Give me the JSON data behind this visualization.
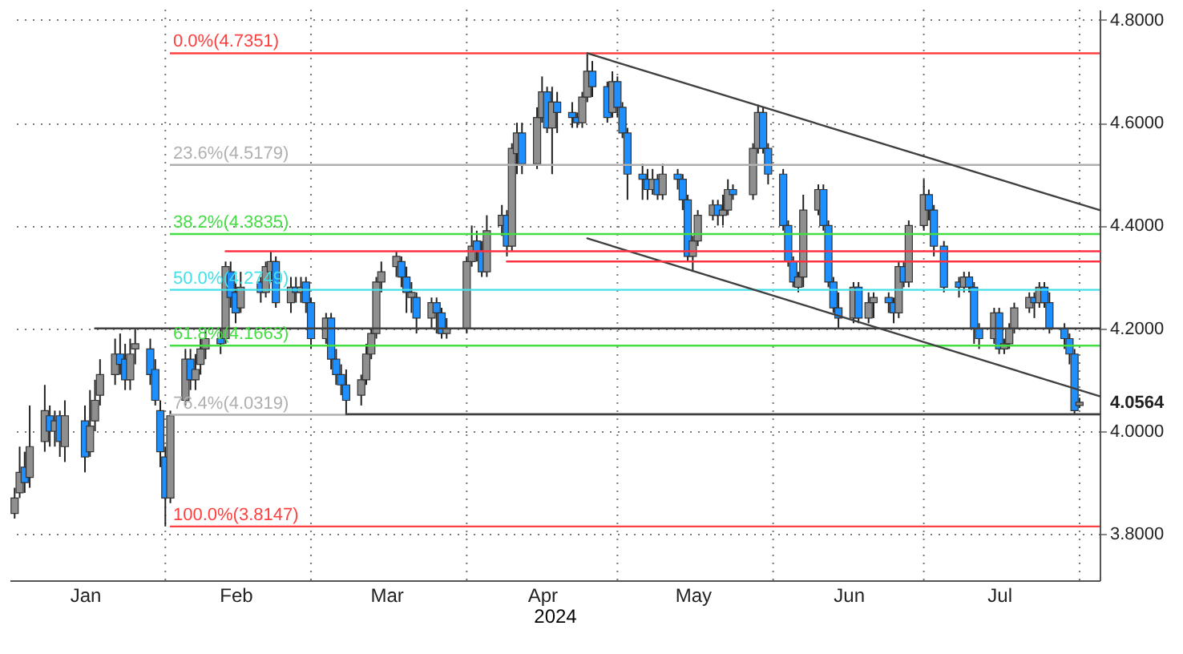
{
  "chart_data": {
    "type": "candlestick",
    "xlabel": "2024",
    "x": [
      "2024-01-02",
      "2024-01-03",
      "2024-01-04",
      "2024-01-05",
      "2024-01-08",
      "2024-01-09",
      "2024-01-10",
      "2024-01-11",
      "2024-01-12",
      "2024-01-16",
      "2024-01-17",
      "2024-01-18",
      "2024-01-19",
      "2024-01-22",
      "2024-01-23",
      "2024-01-24",
      "2024-01-25",
      "2024-01-26",
      "2024-01-29",
      "2024-01-30",
      "2024-01-31",
      "2024-02-01",
      "2024-02-02",
      "2024-02-05",
      "2024-02-06",
      "2024-02-07",
      "2024-02-08",
      "2024-02-09",
      "2024-02-12",
      "2024-02-13",
      "2024-02-14",
      "2024-02-15",
      "2024-02-16",
      "2024-02-20",
      "2024-02-21",
      "2024-02-22",
      "2024-02-23",
      "2024-02-26",
      "2024-02-27",
      "2024-02-28",
      "2024-02-29",
      "2024-03-01",
      "2024-03-04",
      "2024-03-05",
      "2024-03-06",
      "2024-03-07",
      "2024-03-08",
      "2024-03-11",
      "2024-03-12",
      "2024-03-13",
      "2024-03-14",
      "2024-03-15",
      "2024-03-18",
      "2024-03-19",
      "2024-03-20",
      "2024-03-21",
      "2024-03-22",
      "2024-03-25",
      "2024-03-26",
      "2024-03-27",
      "2024-03-28",
      "2024-04-01",
      "2024-04-02",
      "2024-04-03",
      "2024-04-04",
      "2024-04-05",
      "2024-04-08",
      "2024-04-09",
      "2024-04-10",
      "2024-04-11",
      "2024-04-12",
      "2024-04-15",
      "2024-04-16",
      "2024-04-17",
      "2024-04-18",
      "2024-04-19",
      "2024-04-22",
      "2024-04-23",
      "2024-04-24",
      "2024-04-25",
      "2024-04-26",
      "2024-04-29",
      "2024-04-30",
      "2024-05-01",
      "2024-05-02",
      "2024-05-03",
      "2024-05-06",
      "2024-05-07",
      "2024-05-08",
      "2024-05-09",
      "2024-05-10",
      "2024-05-13",
      "2024-05-14",
      "2024-05-15",
      "2024-05-16",
      "2024-05-17",
      "2024-05-20",
      "2024-05-21",
      "2024-05-22",
      "2024-05-23",
      "2024-05-24",
      "2024-05-28",
      "2024-05-29",
      "2024-05-30",
      "2024-05-31",
      "2024-06-03",
      "2024-06-04",
      "2024-06-05",
      "2024-06-06",
      "2024-06-07",
      "2024-06-10",
      "2024-06-11",
      "2024-06-12",
      "2024-06-13",
      "2024-06-14",
      "2024-06-17",
      "2024-06-18",
      "2024-06-20",
      "2024-06-21",
      "2024-06-24",
      "2024-06-25",
      "2024-06-26",
      "2024-06-27",
      "2024-06-28",
      "2024-07-01",
      "2024-07-02",
      "2024-07-03",
      "2024-07-05",
      "2024-07-08",
      "2024-07-09",
      "2024-07-10",
      "2024-07-11",
      "2024-07-12",
      "2024-07-15",
      "2024-07-16",
      "2024-07-17",
      "2024-07-18",
      "2024-07-19",
      "2024-07-22",
      "2024-07-23",
      "2024-07-24",
      "2024-07-25",
      "2024-07-26",
      "2024-07-29",
      "2024-07-30",
      "2024-07-31",
      "2024-08-01"
    ],
    "ohlc": [
      [
        3.84,
        3.89,
        3.83,
        3.87
      ],
      [
        3.88,
        3.97,
        3.87,
        3.92
      ],
      [
        3.93,
        3.96,
        3.88,
        3.9
      ],
      [
        3.91,
        4.05,
        3.89,
        3.97
      ],
      [
        3.98,
        4.09,
        3.96,
        4.04
      ],
      [
        4.03,
        4.05,
        3.97,
        4.0
      ],
      [
        4.0,
        4.04,
        3.97,
        4.02
      ],
      [
        4.03,
        4.04,
        3.95,
        3.98
      ],
      [
        3.97,
        4.06,
        3.94,
        4.03
      ],
      [
        4.02,
        4.05,
        3.92,
        3.95
      ],
      [
        3.96,
        4.08,
        3.95,
        4.01
      ],
      [
        4.02,
        4.1,
        4.0,
        4.06
      ],
      [
        4.07,
        4.14,
        4.05,
        4.11
      ],
      [
        4.11,
        4.18,
        4.09,
        4.15
      ],
      [
        4.15,
        4.19,
        4.11,
        4.13
      ],
      [
        4.14,
        4.17,
        4.08,
        4.1
      ],
      [
        4.1,
        4.18,
        4.08,
        4.15
      ],
      [
        4.16,
        4.2,
        4.13,
        4.17
      ],
      [
        4.16,
        4.18,
        4.09,
        4.11
      ],
      [
        4.12,
        4.14,
        4.05,
        4.06
      ],
      [
        4.04,
        4.06,
        3.93,
        3.96
      ],
      [
        3.95,
        3.97,
        3.8147,
        3.87
      ],
      [
        3.87,
        4.04,
        3.86,
        4.03
      ],
      [
        4.06,
        4.16,
        4.05,
        4.14
      ],
      [
        4.14,
        4.16,
        4.08,
        4.1
      ],
      [
        4.1,
        4.15,
        4.08,
        4.12
      ],
      [
        4.13,
        4.18,
        4.11,
        4.16
      ],
      [
        4.16,
        4.2,
        4.14,
        4.18
      ],
      [
        4.18,
        4.2,
        4.15,
        4.17
      ],
      [
        4.18,
        4.33,
        4.17,
        4.32
      ],
      [
        4.31,
        4.33,
        4.24,
        4.26
      ],
      [
        4.27,
        4.29,
        4.21,
        4.23
      ],
      [
        4.24,
        4.31,
        4.23,
        4.28
      ],
      [
        4.29,
        4.3,
        4.25,
        4.27
      ],
      [
        4.27,
        4.33,
        4.26,
        4.32
      ],
      [
        4.31,
        4.35,
        4.29,
        4.33
      ],
      [
        4.33,
        4.34,
        4.24,
        4.25
      ],
      [
        4.25,
        4.3,
        4.23,
        4.28
      ],
      [
        4.28,
        4.3,
        4.25,
        4.27
      ],
      [
        4.27,
        4.3,
        4.25,
        4.28
      ],
      [
        4.29,
        4.3,
        4.23,
        4.25
      ],
      [
        4.25,
        4.26,
        4.16,
        4.18
      ],
      [
        4.18,
        4.23,
        4.17,
        4.22
      ],
      [
        4.22,
        4.23,
        4.12,
        4.14
      ],
      [
        4.14,
        4.16,
        4.09,
        4.11
      ],
      [
        4.11,
        4.13,
        4.07,
        4.09
      ],
      [
        4.09,
        4.12,
        4.033,
        4.06
      ],
      [
        4.07,
        4.11,
        4.05,
        4.1
      ],
      [
        4.1,
        4.17,
        4.09,
        4.15
      ],
      [
        4.15,
        4.2,
        4.14,
        4.19
      ],
      [
        4.19,
        4.3,
        4.18,
        4.29
      ],
      [
        4.29,
        4.33,
        4.27,
        4.31
      ],
      [
        4.32,
        4.35,
        4.3,
        4.34
      ],
      [
        4.33,
        4.34,
        4.28,
        4.3
      ],
      [
        4.3,
        4.32,
        4.23,
        4.27
      ],
      [
        4.26,
        4.29,
        4.23,
        4.27
      ],
      [
        4.26,
        4.27,
        4.19,
        4.22
      ],
      [
        4.22,
        4.26,
        4.2,
        4.25
      ],
      [
        4.25,
        4.26,
        4.19,
        4.23
      ],
      [
        4.23,
        4.24,
        4.18,
        4.19
      ],
      [
        4.19,
        4.22,
        4.18,
        4.2
      ],
      [
        4.2,
        4.34,
        4.19,
        4.33
      ],
      [
        4.33,
        4.4,
        4.32,
        4.36
      ],
      [
        4.37,
        4.39,
        4.33,
        4.35
      ],
      [
        4.35,
        4.37,
        4.3,
        4.31
      ],
      [
        4.31,
        4.42,
        4.3,
        4.39
      ],
      [
        4.4,
        4.44,
        4.38,
        4.42
      ],
      [
        4.42,
        4.43,
        4.34,
        4.36
      ],
      [
        4.36,
        4.56,
        4.35,
        4.55
      ],
      [
        4.54,
        4.6,
        4.5,
        4.58
      ],
      [
        4.58,
        4.6,
        4.5,
        4.52
      ],
      [
        4.52,
        4.63,
        4.51,
        4.61
      ],
      [
        4.61,
        4.69,
        4.6,
        4.66
      ],
      [
        4.66,
        4.67,
        4.58,
        4.59
      ],
      [
        4.59,
        4.67,
        4.5,
        4.64
      ],
      [
        4.64,
        4.66,
        4.58,
        4.62
      ],
      [
        4.62,
        4.64,
        4.59,
        4.61
      ],
      [
        4.61,
        4.62,
        4.59,
        4.6
      ],
      [
        4.6,
        4.66,
        4.59,
        4.65
      ],
      [
        4.65,
        4.7351,
        4.64,
        4.7
      ],
      [
        4.7,
        4.72,
        4.65,
        4.67
      ],
      [
        4.67,
        4.68,
        4.6,
        4.61
      ],
      [
        4.62,
        4.7,
        4.61,
        4.68
      ],
      [
        4.68,
        4.69,
        4.61,
        4.63
      ],
      [
        4.63,
        4.64,
        4.57,
        4.58
      ],
      [
        4.58,
        4.59,
        4.45,
        4.5
      ],
      [
        4.5,
        4.52,
        4.45,
        4.49
      ],
      [
        4.49,
        4.51,
        4.45,
        4.47
      ],
      [
        4.47,
        4.51,
        4.46,
        4.49
      ],
      [
        4.49,
        4.5,
        4.45,
        4.46
      ],
      [
        4.46,
        4.52,
        4.45,
        4.5
      ],
      [
        4.5,
        4.51,
        4.47,
        4.49
      ],
      [
        4.49,
        4.5,
        4.43,
        4.45
      ],
      [
        4.45,
        4.46,
        4.33,
        4.34
      ],
      [
        4.34,
        4.38,
        4.31,
        4.37
      ],
      [
        4.37,
        4.43,
        4.36,
        4.42
      ],
      [
        4.42,
        4.45,
        4.41,
        4.44
      ],
      [
        4.44,
        4.45,
        4.4,
        4.42
      ],
      [
        4.42,
        4.46,
        4.4,
        4.43
      ],
      [
        4.43,
        4.49,
        4.42,
        4.47
      ],
      [
        4.47,
        4.48,
        4.45,
        4.46
      ],
      [
        4.46,
        4.56,
        4.45,
        4.55
      ],
      [
        4.55,
        4.635,
        4.54,
        4.62
      ],
      [
        4.62,
        4.63,
        4.54,
        4.55
      ],
      [
        4.55,
        4.56,
        4.48,
        4.5
      ],
      [
        4.5,
        4.51,
        4.39,
        4.4
      ],
      [
        4.4,
        4.41,
        4.32,
        4.33
      ],
      [
        4.33,
        4.34,
        4.28,
        4.29
      ],
      [
        4.28,
        4.31,
        4.27,
        4.3
      ],
      [
        4.3,
        4.46,
        4.28,
        4.43
      ],
      [
        4.43,
        4.48,
        4.42,
        4.47
      ],
      [
        4.47,
        4.48,
        4.39,
        4.4
      ],
      [
        4.4,
        4.41,
        4.28,
        4.29
      ],
      [
        4.29,
        4.3,
        4.23,
        4.24
      ],
      [
        4.24,
        4.27,
        4.2,
        4.22
      ],
      [
        4.22,
        4.29,
        4.21,
        4.28
      ],
      [
        4.28,
        4.29,
        4.21,
        4.22
      ],
      [
        4.22,
        4.27,
        4.21,
        4.25
      ],
      [
        4.25,
        4.27,
        4.22,
        4.26
      ],
      [
        4.26,
        4.27,
        4.23,
        4.25
      ],
      [
        4.25,
        4.26,
        4.21,
        4.23
      ],
      [
        4.23,
        4.33,
        4.22,
        4.32
      ],
      [
        4.32,
        4.33,
        4.28,
        4.29
      ],
      [
        4.29,
        4.41,
        4.28,
        4.4
      ],
      [
        4.4,
        4.49,
        4.39,
        4.46
      ],
      [
        4.46,
        4.47,
        4.41,
        4.43
      ],
      [
        4.43,
        4.44,
        4.34,
        4.36
      ],
      [
        4.36,
        4.37,
        4.27,
        4.28
      ],
      [
        4.29,
        4.3,
        4.26,
        4.28
      ],
      [
        4.28,
        4.31,
        4.27,
        4.3
      ],
      [
        4.3,
        4.31,
        4.27,
        4.28
      ],
      [
        4.28,
        4.29,
        4.17,
        4.2
      ],
      [
        4.2,
        4.21,
        4.16,
        4.18
      ],
      [
        4.18,
        4.24,
        4.17,
        4.23
      ],
      [
        4.23,
        4.24,
        4.15,
        4.16
      ],
      [
        4.16,
        4.18,
        4.15,
        4.17
      ],
      [
        4.17,
        4.21,
        4.16,
        4.2
      ],
      [
        4.2,
        4.25,
        4.19,
        4.24
      ],
      [
        4.24,
        4.27,
        4.23,
        4.26
      ],
      [
        4.26,
        4.27,
        4.22,
        4.25
      ],
      [
        4.25,
        4.29,
        4.24,
        4.28
      ],
      [
        4.28,
        4.29,
        4.24,
        4.25
      ],
      [
        4.25,
        4.27,
        4.19,
        4.2
      ],
      [
        4.2,
        4.21,
        4.16,
        4.18
      ],
      [
        4.18,
        4.19,
        4.13,
        4.15
      ],
      [
        4.15,
        4.16,
        4.033,
        4.04
      ],
      [
        4.05,
        4.065,
        4.045,
        4.0564
      ]
    ],
    "series": [
      {
        "type": "line",
        "color": "#404040",
        "x": [
          "2024-04-25",
          "2024-08-05"
        ],
        "values": [
          4.7351,
          4.43
        ]
      },
      {
        "type": "line",
        "color": "#404040",
        "x": [
          "2024-04-25",
          "2024-08-05"
        ],
        "values": [
          4.375,
          4.068
        ]
      },
      {
        "type": "line",
        "color": "#404040",
        "x": [
          "2024-01-18",
          "2024-08-05"
        ],
        "values": [
          4.2,
          4.2
        ]
      },
      {
        "type": "line",
        "color": "#404040",
        "x": [
          "2024-03-08",
          "2024-08-05"
        ],
        "values": [
          4.033,
          4.033
        ]
      },
      {
        "type": "line",
        "color": "#ff3040",
        "x": [
          "2024-02-13",
          "2024-08-05"
        ],
        "values": [
          4.35,
          4.35
        ]
      },
      {
        "type": "line",
        "color": "#ff3040",
        "x": [
          "2024-04-09",
          "2024-08-05"
        ],
        "values": [
          4.33,
          4.33
        ]
      }
    ],
    "ref_lines": [
      {
        "axis": "y",
        "value": 4.7351,
        "label": "0.0%(4.7351)",
        "color": "#ff4040"
      },
      {
        "axis": "y",
        "value": 4.5179,
        "label": "23.6%(4.5179)",
        "color": "#b0b0b0"
      },
      {
        "axis": "y",
        "value": 4.3835,
        "label": "38.2%(4.3835)",
        "color": "#44dd44"
      },
      {
        "axis": "y",
        "value": 4.2749,
        "label": "50.0%(4.2749)",
        "color": "#44e0e8"
      },
      {
        "axis": "y",
        "value": 4.1663,
        "label": "61.8%(4.1663)",
        "color": "#44dd44"
      },
      {
        "axis": "y",
        "value": 4.0319,
        "label": "76.4%(4.0319)",
        "color": "#b0b0b0"
      },
      {
        "axis": "y",
        "value": 3.8147,
        "label": "100.0%(3.8147)",
        "color": "#ff4040"
      }
    ],
    "xlim": [
      "2024-01-01",
      "2024-08-05"
    ],
    "xticks": [
      {
        "value": "2024-01-16",
        "label": "Jan"
      },
      {
        "value": "2024-02-15",
        "label": "Feb"
      },
      {
        "value": "2024-03-16",
        "label": "Mar"
      },
      {
        "value": "2024-04-16",
        "label": "Apr"
      },
      {
        "value": "2024-05-16",
        "label": "May"
      },
      {
        "value": "2024-06-16",
        "label": "Jun"
      },
      {
        "value": "2024-07-16",
        "label": "Jul"
      },
      {
        "value": "2024-02-01",
        "label": null
      },
      {
        "value": "2024-03-01",
        "label": null
      },
      {
        "value": "2024-04-01",
        "label": null
      },
      {
        "value": "2024-05-01",
        "label": null
      },
      {
        "value": "2024-06-01",
        "label": null
      },
      {
        "value": "2024-07-01",
        "label": null
      },
      {
        "value": "2024-08-01",
        "label": null
      }
    ],
    "ylim": [
      3.71,
      4.82
    ],
    "yticks": [
      {
        "value": 3.8,
        "label": "3.8000"
      },
      {
        "value": 4.0,
        "label": "4.0000"
      },
      {
        "value": 4.0564,
        "label": "4.0564"
      },
      {
        "value": 4.2,
        "label": "4.2000"
      },
      {
        "value": 4.4,
        "label": "4.4000"
      },
      {
        "value": 4.6,
        "label": "4.6000"
      },
      {
        "value": 4.8,
        "label": "4.8000"
      }
    ],
    "grid": true
  }
}
